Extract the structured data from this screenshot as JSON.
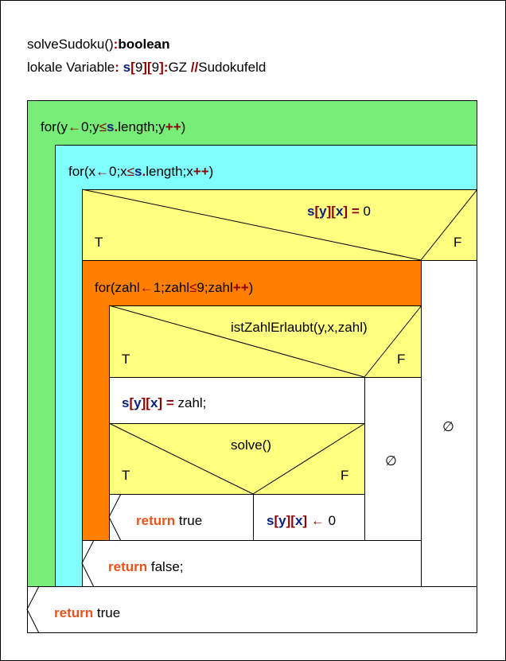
{
  "header": {
    "function_name": "solveSudoku()",
    "return_colon": ":",
    "return_type": "boolean",
    "locals_label": "lokale Variable",
    "locals_colon": ":",
    "var_s": "s",
    "dim1_open": "[",
    "dim1": "9",
    "dim1_close": "]",
    "dim2_open": "[",
    "dim2": "9",
    "dim2_close": "]",
    "type_colon": ":",
    "type_name": "GZ",
    "comment_marker": "//",
    "comment": "Sudokufeld"
  },
  "loop_y": {
    "prefix": "for(y",
    "arrow": "←",
    "init": "0;y",
    "leq": "≤",
    "s": "s",
    "dot": ".",
    "cond_rest": "length;y",
    "incr": "++",
    "close": ")"
  },
  "loop_x": {
    "prefix": "for(x",
    "arrow": "←",
    "init": "0;x",
    "leq": "≤",
    "s": "s",
    "dot": ".",
    "cond_rest": "length;x",
    "incr": "++",
    "close": ")"
  },
  "if_empty": {
    "s": "s",
    "b1o": "[",
    "i1": "y",
    "b1c": "]",
    "b2o": "[",
    "i2": "x",
    "b2c": "]",
    "eq": "=",
    "value": "0",
    "true_label": "T",
    "false_label": "F",
    "else_symbol": "∅"
  },
  "loop_zahl": {
    "prefix": "for(zahl",
    "arrow": "←",
    "init": "1;zahl",
    "leq": "≤",
    "cond_rest": "9;zahl",
    "incr": "++",
    "close": ")"
  },
  "if_allowed": {
    "condition": "istZahlErlaubt(y,x,zahl)",
    "true_label": "T",
    "false_label": "F",
    "else_symbol": "∅"
  },
  "assign_zahl": {
    "s": "s",
    "b1o": "[",
    "i1": "y",
    "b1c": "]",
    "b2o": "[",
    "i2": "x",
    "b2c": "]",
    "eq": "=",
    "value": "zahl;"
  },
  "if_solve": {
    "condition": "solve()",
    "true_label": "T",
    "false_label": "F"
  },
  "return_true_inner": {
    "keyword": "return",
    "value": "true"
  },
  "reset_cell": {
    "s": "s",
    "b1o": "[",
    "i1": "y",
    "b1c": "]",
    "b2o": "[",
    "i2": "x",
    "b2c": "]",
    "arrow": "←",
    "value": "0"
  },
  "return_false": {
    "keyword": "return",
    "value": "false;"
  },
  "return_true_outer": {
    "keyword": "return",
    "value": "true"
  },
  "colors": {
    "loop_y": "#77ee77",
    "loop_x": "#80ffff",
    "if_empty": "#ffff80",
    "loop_zahl": "#ff8000",
    "if_allowed": "#ffff80",
    "if_solve": "#ffff80",
    "statement": "#ffffff",
    "line": "#000000"
  }
}
